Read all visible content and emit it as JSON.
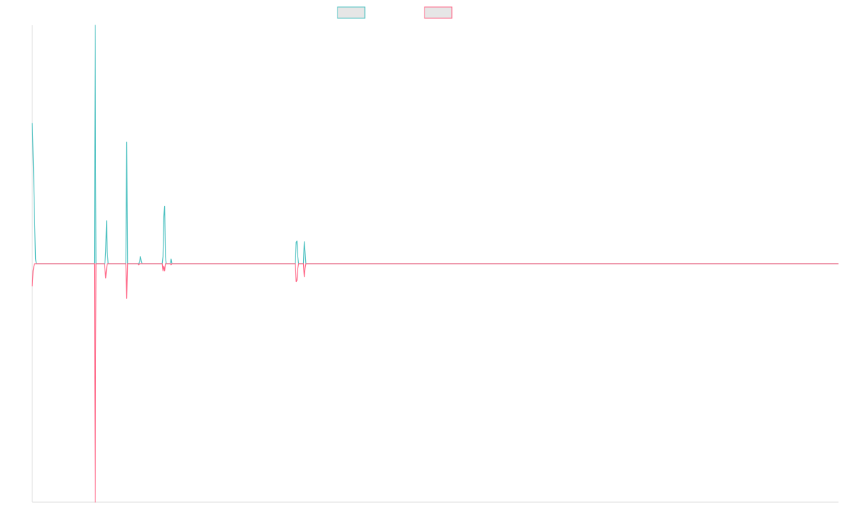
{
  "chart_data": {
    "type": "line",
    "title": "",
    "xlabel": "",
    "ylabel": "",
    "xlim": [
      0,
      999
    ],
    "ylim": [
      -1,
      1
    ],
    "grid": false,
    "legend_placement": "top-center",
    "series": [
      {
        "color": "#4bc0c0",
        "points": [
          [
            0,
            0.59
          ],
          [
            2,
            0.32
          ],
          [
            3,
            0.16
          ],
          [
            4,
            0.02
          ],
          [
            5,
            0
          ],
          [
            77,
            0
          ],
          [
            78,
            1.0
          ],
          [
            79,
            0
          ],
          [
            90,
            0
          ],
          [
            91,
            0.05
          ],
          [
            92,
            0.18
          ],
          [
            93,
            0.05
          ],
          [
            94,
            0
          ],
          [
            116,
            0
          ],
          [
            117,
            0.51
          ],
          [
            118,
            0
          ],
          [
            130,
            0
          ],
          [
            131,
            0
          ],
          [
            132,
            0
          ],
          [
            133,
            0.01
          ],
          [
            134,
            0.03
          ],
          [
            135,
            0.01
          ],
          [
            136,
            0
          ],
          [
            161,
            0
          ],
          [
            162,
            0.03
          ],
          [
            163,
            0.2
          ],
          [
            164,
            0.24
          ],
          [
            165,
            0.03
          ],
          [
            166,
            0
          ],
          [
            171,
            0
          ],
          [
            172,
            0.02
          ],
          [
            173,
            0
          ],
          [
            326,
            0
          ],
          [
            327,
            0.09
          ],
          [
            328,
            0.095
          ],
          [
            329,
            0.03
          ],
          [
            330,
            0
          ],
          [
            336,
            0
          ],
          [
            337,
            0.092
          ],
          [
            338,
            0.05
          ],
          [
            339,
            0
          ],
          [
            999,
            0
          ]
        ]
      },
      {
        "color": "#ff6384",
        "points": [
          [
            0,
            -0.095
          ],
          [
            1,
            -0.03
          ],
          [
            2,
            -0.01
          ],
          [
            3,
            0
          ],
          [
            77,
            0
          ],
          [
            78,
            -1.0
          ],
          [
            79,
            0
          ],
          [
            89,
            0
          ],
          [
            90,
            -0.02
          ],
          [
            91,
            -0.06
          ],
          [
            92,
            -0.02
          ],
          [
            93,
            0
          ],
          [
            116,
            0
          ],
          [
            117,
            -0.145
          ],
          [
            118,
            0
          ],
          [
            130,
            0
          ],
          [
            131,
            0
          ],
          [
            132,
            -0.005
          ],
          [
            133,
            0
          ],
          [
            161,
            0
          ],
          [
            162,
            -0.03
          ],
          [
            163,
            -0.01
          ],
          [
            164,
            -0.03
          ],
          [
            165,
            0
          ],
          [
            171,
            0
          ],
          [
            172,
            -0.005
          ],
          [
            173,
            0
          ],
          [
            326,
            0
          ],
          [
            327,
            -0.075
          ],
          [
            328,
            -0.07
          ],
          [
            329,
            -0.02
          ],
          [
            330,
            0
          ],
          [
            336,
            0
          ],
          [
            337,
            -0.055
          ],
          [
            338,
            -0.02
          ],
          [
            339,
            0
          ],
          [
            999,
            0
          ]
        ]
      }
    ]
  }
}
